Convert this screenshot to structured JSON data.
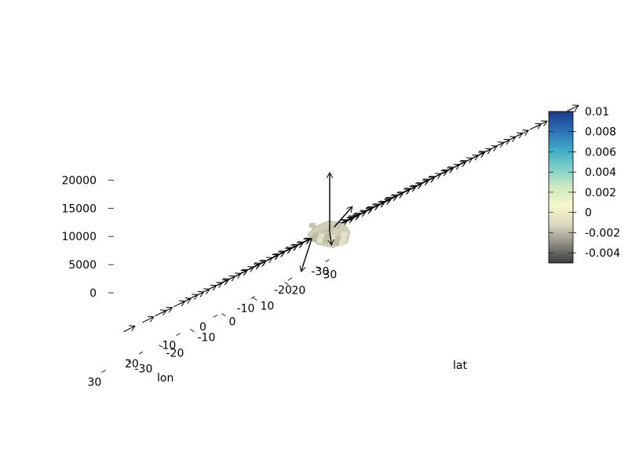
{
  "chart_data": {
    "type": "3d-quiver",
    "title": "",
    "xlabel": "lon",
    "ylabel": "lat",
    "zlabel": "",
    "xlim": [
      -30,
      30
    ],
    "ylim": [
      -30,
      30
    ],
    "zlim": [
      0,
      20000
    ],
    "x_ticks": [
      "-30",
      "-20",
      "-10",
      "0",
      "10",
      "20",
      "30"
    ],
    "y_ticks": [
      "-30",
      "-20",
      "-10",
      "0",
      "10",
      "20",
      "30"
    ],
    "z_ticks": [
      "0",
      "5000",
      "10000",
      "15000",
      "20000"
    ],
    "vector_grid": {
      "lon": [
        -30,
        -25,
        -20,
        -15,
        -10,
        -5,
        0,
        5,
        10,
        15,
        20,
        25,
        30
      ],
      "lat": [
        -30,
        -20,
        -10,
        0,
        10,
        20,
        30,
        40
      ],
      "z": 5000,
      "u": 0,
      "v": 1,
      "description_color": "#000000"
    },
    "highlighted_vectors": [
      {
        "lon": 0,
        "lat": 0,
        "z": 5000,
        "u": 0,
        "v": 0,
        "w": 1
      },
      {
        "lon": 3,
        "lat": 5,
        "z": 5000,
        "u": 0,
        "v": 1,
        "w": 0.2
      },
      {
        "lon": 6,
        "lat": 7,
        "z": 5000,
        "u": 0.4,
        "v": 0.6,
        "w": -0.3
      },
      {
        "lon": 9,
        "lat": 5,
        "z": 5000,
        "u": 0.5,
        "v": 0,
        "w": -0.5
      }
    ],
    "surface_blob": {
      "lon_center": 0,
      "lat_center": 0,
      "color": "#cfcdb4"
    },
    "colorbar": {
      "min": -0.005,
      "max": 0.01,
      "ticks": [
        "0.01",
        "0.008",
        "0.006",
        "0.004",
        "0.002",
        "0",
        "-0.002",
        "-0.004"
      ],
      "colors": [
        "#1a3a8a",
        "#2b6fb5",
        "#3fa9c4",
        "#7fd0c8",
        "#cfe9c0",
        "#f5f7c8",
        "#d8d6bf",
        "#8c8a80",
        "#3b3b3b"
      ]
    }
  }
}
